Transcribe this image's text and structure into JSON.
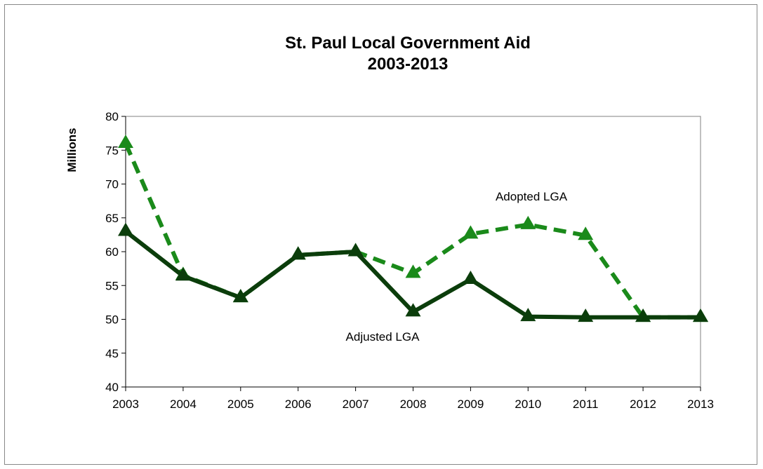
{
  "chart_data": {
    "type": "line",
    "title": "St. Paul Local Government Aid",
    "subtitle": "2003-2013",
    "xlabel": "",
    "ylabel": "Millions",
    "categories": [
      "2003",
      "2004",
      "2005",
      "2006",
      "2007",
      "2008",
      "2009",
      "2010",
      "2011",
      "2012",
      "2013"
    ],
    "yticks": [
      "40",
      "45",
      "50",
      "55",
      "60",
      "65",
      "70",
      "75",
      "80"
    ],
    "ylim": [
      40,
      80
    ],
    "grid": false,
    "legend": "none",
    "series": [
      {
        "name": "Adopted LGA",
        "style": "dashed",
        "color": "#1a8a1a",
        "values": [
          76,
          56.5,
          53.2,
          59.5,
          60,
          56.8,
          62.6,
          64,
          62.4,
          50.3,
          50.3
        ]
      },
      {
        "name": "Adjusted LGA",
        "style": "solid",
        "color": "#0b3d0b",
        "values": [
          63,
          56.4,
          53.2,
          59.5,
          60,
          51.1,
          55.9,
          50.4,
          50.3,
          50.3,
          50.3
        ]
      }
    ],
    "annotations": [
      {
        "text": "Adopted LGA",
        "series": "Adopted LGA"
      },
      {
        "text": "Adjusted LGA",
        "series": "Adjusted LGA"
      }
    ]
  }
}
